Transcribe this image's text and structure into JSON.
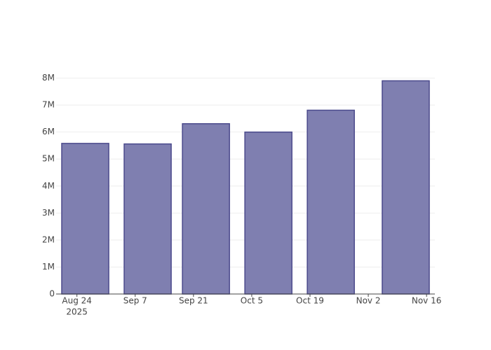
{
  "chart_data": {
    "type": "bar",
    "x": [
      "2025-08-26",
      "2025-09-10",
      "2025-09-24",
      "2025-10-09",
      "2025-10-24",
      "2025-11-11"
    ],
    "values": [
      5580000,
      5560000,
      6310000,
      6000000,
      6810000,
      7900000
    ],
    "color": "#7f7fb0",
    "line_color": "#4b4a8c",
    "xlim": [
      "2025-08-19",
      "2025-11-18"
    ],
    "xticks": [
      {
        "value": "2025-08-24",
        "label": "Aug 24"
      },
      {
        "value": "2025-09-07",
        "label": "Sep 7"
      },
      {
        "value": "2025-09-21",
        "label": "Sep 21"
      },
      {
        "value": "2025-10-05",
        "label": "Oct 5"
      },
      {
        "value": "2025-10-19",
        "label": "Oct 19"
      },
      {
        "value": "2025-11-02",
        "label": "Nov 2"
      },
      {
        "value": "2025-11-16",
        "label": "Nov 16"
      }
    ],
    "x_axis_year": "2025",
    "ylim": [
      0,
      8300000
    ],
    "yticks": [
      0,
      {
        "value": 1000000,
        "label": "1M"
      },
      {
        "value": 2000000,
        "label": "2M"
      },
      {
        "value": 3000000,
        "label": "3M"
      },
      {
        "value": 4000000,
        "label": "4M"
      },
      {
        "value": 5000000,
        "label": "5M"
      },
      {
        "value": 6000000,
        "label": "6M"
      },
      {
        "value": 7000000,
        "label": "7M"
      },
      {
        "value": 8000000,
        "label": "8M"
      }
    ],
    "grid": true
  }
}
